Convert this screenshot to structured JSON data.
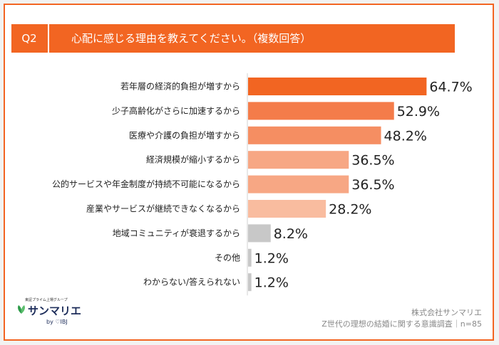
{
  "header": {
    "question_label": "Q2",
    "question_text": "心配に感じる理由を教えてください。（複数回答）"
  },
  "chart_data": {
    "type": "bar",
    "orientation": "horizontal",
    "categories": [
      "若年層の経済的負担が増すから",
      "少子高齢化がさらに加速するから",
      "医療や介護の負担が増すから",
      "経済規模が縮小するから",
      "公的サービスや年金制度が持続不可能になるから",
      "産業やサービスが継続できなくなるから",
      "地域コミュニティが衰退するから",
      "その他",
      "わからない/答えられない"
    ],
    "values": [
      64.7,
      52.9,
      48.2,
      36.5,
      36.5,
      28.2,
      8.2,
      1.2,
      1.2
    ],
    "value_labels": [
      "64.7%",
      "52.9%",
      "48.2%",
      "36.5%",
      "36.5%",
      "28.2%",
      "8.2%",
      "1.2%",
      "1.2%"
    ],
    "bar_colors": [
      "#f26522",
      "#f47c4a",
      "#f58e62",
      "#f7a784",
      "#f7a784",
      "#f9bc9f",
      "#c8c8c8",
      "#c8c8c8",
      "#c8c8c8"
    ],
    "xlim": [
      0,
      100
    ],
    "grid": false,
    "legend": "none"
  },
  "logo": {
    "tagline": "東証プライム上場グループ",
    "brand": "サンマリエ",
    "by": "by ♡IBJ"
  },
  "footer": {
    "company": "株式会社サンマリエ",
    "survey": "Z世代の理想の結婚に関する意識調査｜n=85"
  },
  "colors": {
    "accent": "#f26522"
  }
}
